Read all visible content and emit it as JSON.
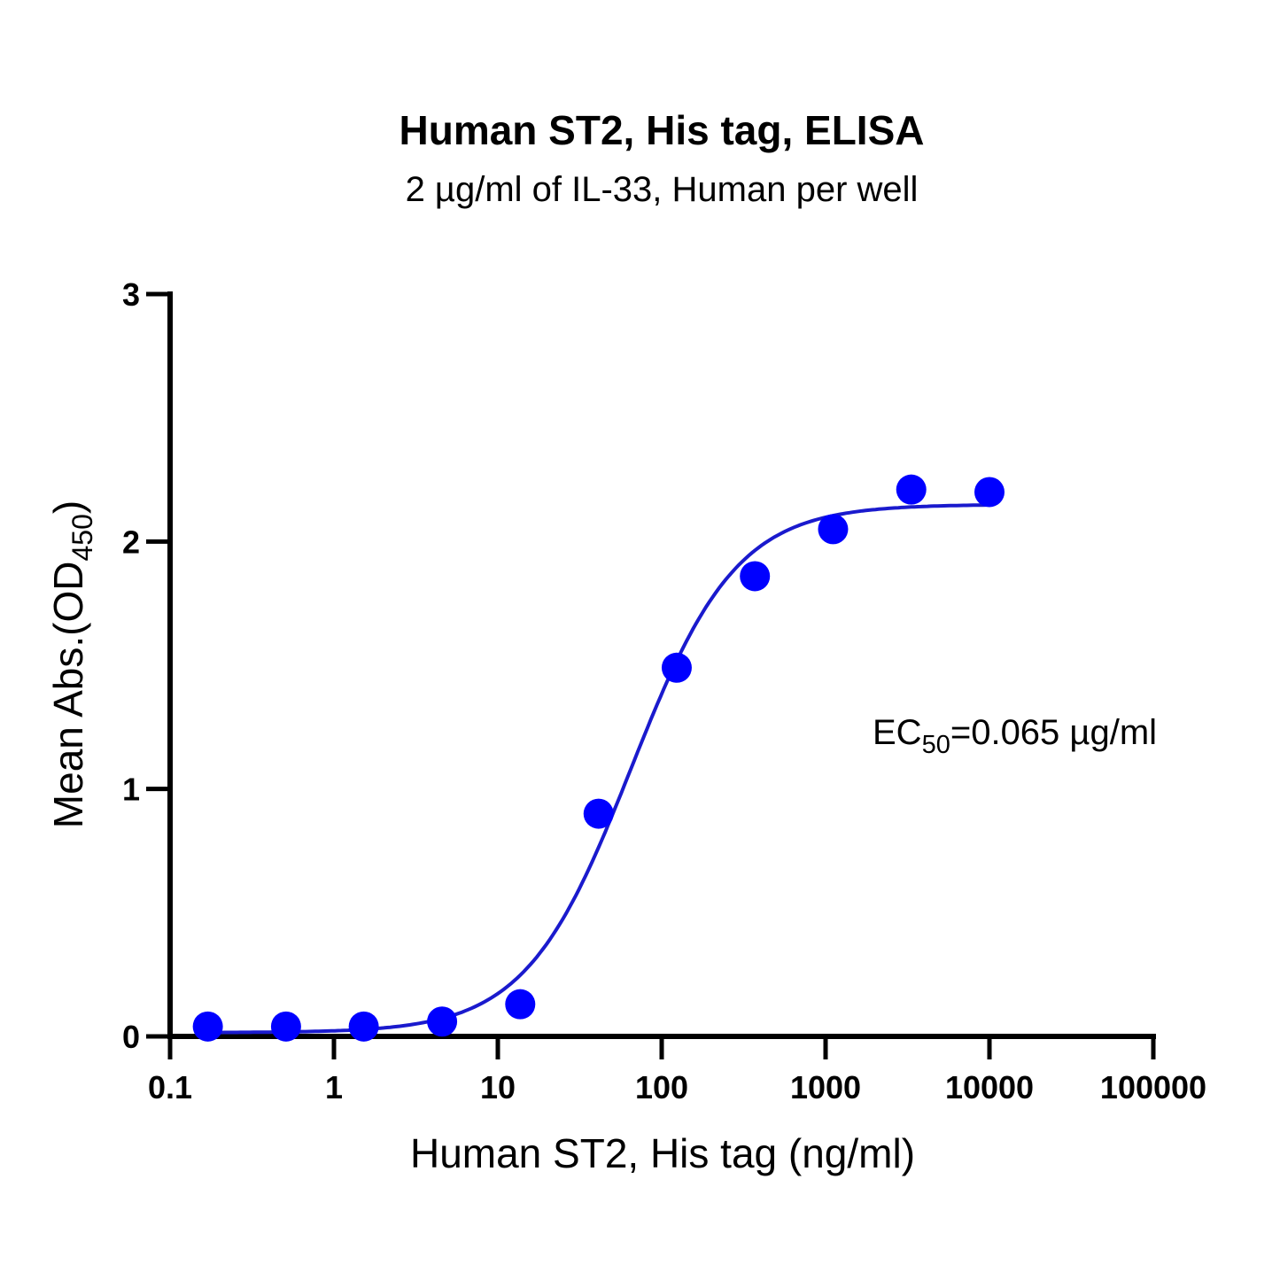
{
  "chart_data": {
    "type": "scatter",
    "title": "Human ST2, His tag, ELISA",
    "subtitle": "2 µg/ml of IL-33, Human per well",
    "xlabel": "Human ST2, His tag (ng/ml)",
    "ylabel": {
      "main": "Mean Abs.(OD",
      "sub": "450",
      "close": ")"
    },
    "xscale": "log",
    "xlim": [
      0.1,
      100000
    ],
    "ylim": [
      0,
      3
    ],
    "xticks": [
      0.1,
      1,
      10,
      100,
      1000,
      10000,
      100000
    ],
    "xtick_labels": [
      "0.1",
      "1",
      "10",
      "100",
      "1000",
      "10000",
      "100000"
    ],
    "yticks": [
      0,
      1,
      2,
      3
    ],
    "ytick_labels": [
      "0",
      "1",
      "2",
      "3"
    ],
    "series": [
      {
        "x": [
          0.17,
          0.51,
          1.52,
          4.57,
          13.7,
          41.2,
          123.5,
          370.4,
          1111,
          3333,
          10000
        ],
        "y": [
          0.04,
          0.04,
          0.04,
          0.06,
          0.13,
          0.9,
          1.49,
          1.86,
          2.05,
          2.21,
          2.2
        ],
        "color": "#0000ff"
      }
    ],
    "fit": {
      "model": "4PL",
      "bottom": 0.015,
      "top": 2.15,
      "ec50_ngml": 65,
      "hill": 1.35,
      "color": "#1a1acd"
    },
    "annotation": {
      "prefix": "EC",
      "sub": "50",
      "suffix": "=0.065 µg/ml"
    },
    "grid": false,
    "legend": "none"
  }
}
